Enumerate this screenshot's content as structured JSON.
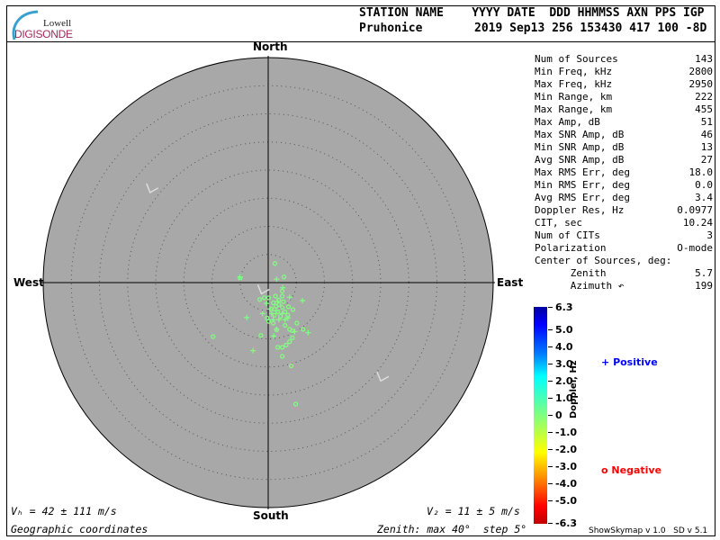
{
  "logo": {
    "top": "Lowell",
    "bottom": "DIGISONDE"
  },
  "header": {
    "row1": "STATION NAME    YYYY DATE  DDD HHMMSS AXN PPS IGP",
    "station": "Pruhonice",
    "values": "2019 Sep13 256 153430 417 100 -8D"
  },
  "directions": {
    "north": "North",
    "south": "South",
    "east": "East",
    "west": "West"
  },
  "stats": [
    {
      "label": "Num of Sources",
      "value": "143"
    },
    {
      "label": "Min Freq, kHz",
      "value": "2800"
    },
    {
      "label": "Max Freq, kHz",
      "value": "2950"
    },
    {
      "label": "Min Range, km",
      "value": "222"
    },
    {
      "label": "Max Range, km",
      "value": "455"
    },
    {
      "label": "Max Amp, dB",
      "value": "51"
    },
    {
      "label": "Max SNR Amp, dB",
      "value": "46"
    },
    {
      "label": "Min SNR Amp, dB",
      "value": "13"
    },
    {
      "label": "Avg SNR Amp, dB",
      "value": "27"
    },
    {
      "label": "Max RMS Err, deg",
      "value": "18.0"
    },
    {
      "label": "Min RMS Err, deg",
      "value": "0.0"
    },
    {
      "label": "Avg RMS Err, deg",
      "value": "3.4"
    },
    {
      "label": "Doppler Res, Hz",
      "value": "0.0977"
    },
    {
      "label": "CIT, sec",
      "value": "10.24"
    },
    {
      "label": "Num of CITs",
      "value": "3"
    },
    {
      "label": "Polarization",
      "value": "O-mode"
    },
    {
      "label": "Center of Sources, deg:",
      "value": ""
    },
    {
      "label": "      Zenith",
      "value": "5.7"
    },
    {
      "label": "      Azimuth ↶",
      "value": "199"
    }
  ],
  "colorbar": {
    "label": "Doppler, Hz",
    "ticks": [
      "6.3",
      "5.0",
      "4.0",
      "3.0",
      "2.0",
      "1.0",
      "0",
      "-1.0",
      "-2.0",
      "-3.0",
      "-4.0",
      "-5.0",
      "-6.3"
    ]
  },
  "legend": {
    "positive": "Positive",
    "negative": "Negative",
    "positive_symbol": "+",
    "negative_symbol": "o",
    "positive_color": "#0000ff",
    "negative_color": "#ff0000"
  },
  "footer": {
    "vh": "Vₕ = 42 ± 111 m/s",
    "vz": "V₂ = 11 ± 5 m/s",
    "coords": "Geographic coordinates",
    "zenith": "Zenith: max 40°  step 5°",
    "version": "ShowSkymap v 1.0   SD v 5.1"
  },
  "chart_data": {
    "type": "scatter",
    "projection": "polar skymap, zenith angle radial, azimuth from North",
    "zenith_max_deg": 40,
    "zenith_step_deg": 5,
    "x_unit": "deg East",
    "y_unit": "deg North",
    "point_color": "#80ff80",
    "negative_points": [
      [
        1.2,
        3.4
      ],
      [
        2.8,
        1.0
      ],
      [
        -5.0,
        0.8
      ],
      [
        2.5,
        -1.5
      ],
      [
        -1.5,
        -3.0
      ],
      [
        -0.7,
        -2.7
      ],
      [
        0.1,
        -2.7
      ],
      [
        1.3,
        -2.4
      ],
      [
        2.5,
        -2.4
      ],
      [
        3.6,
        -4.3
      ],
      [
        4.4,
        -4.8
      ],
      [
        0.1,
        -6.9
      ],
      [
        -0.2,
        -6.3
      ],
      [
        3.0,
        -7.6
      ],
      [
        5.1,
        -7.2
      ],
      [
        3.8,
        -8.3
      ],
      [
        4.3,
        -8.6
      ],
      [
        6.2,
        -8.3
      ],
      [
        1.5,
        -8.4
      ],
      [
        4.3,
        -9.8
      ],
      [
        3.8,
        -10.5
      ],
      [
        3.2,
        -11.1
      ],
      [
        2.5,
        -11.5
      ],
      [
        1.7,
        -11.5
      ],
      [
        -1.3,
        -9.4
      ],
      [
        -9.8,
        -9.6
      ],
      [
        2.5,
        -13.1
      ],
      [
        4.1,
        -14.8
      ],
      [
        4.9,
        -21.6
      ],
      [
        0.9,
        -7.2
      ],
      [
        0.9,
        -3.6
      ],
      [
        1.4,
        -4.2
      ],
      [
        1.9,
        -3.9
      ],
      [
        2.5,
        -4.4
      ],
      [
        1.7,
        -5.2
      ],
      [
        1.1,
        -5.8
      ],
      [
        3.0,
        -5.2
      ],
      [
        2.2,
        -6.0
      ],
      [
        3.5,
        -5.8
      ],
      [
        0.6,
        -4.7
      ],
      [
        2.7,
        -3.4
      ],
      [
        1.9,
        -3.1
      ]
    ],
    "positive_points": [
      [
        1.5,
        0.6
      ],
      [
        2.6,
        -0.9
      ],
      [
        3.8,
        -2.6
      ],
      [
        6.1,
        -3.2
      ],
      [
        -3.8,
        -6.2
      ],
      [
        -1.0,
        -5.5
      ],
      [
        -0.3,
        -3.7
      ],
      [
        0.3,
        -4.7
      ],
      [
        1.4,
        -5.0
      ],
      [
        2.5,
        -5.5
      ],
      [
        1.9,
        -6.6
      ],
      [
        3.0,
        -6.6
      ],
      [
        3.5,
        -6.3
      ],
      [
        0.9,
        -6.6
      ],
      [
        1.5,
        -8.3
      ],
      [
        4.7,
        -8.7
      ],
      [
        7.1,
        -8.9
      ],
      [
        1.0,
        -9.5
      ],
      [
        -2.7,
        -12.1
      ],
      [
        1.7,
        -3.4
      ],
      [
        0.6,
        -5.5
      ],
      [
        -5.0,
        1.0
      ]
    ],
    "velocity_markers": [
      [
        -21,
        16.5
      ],
      [
        20,
        -17
      ],
      [
        -1.2,
        -1.5
      ]
    ]
  }
}
